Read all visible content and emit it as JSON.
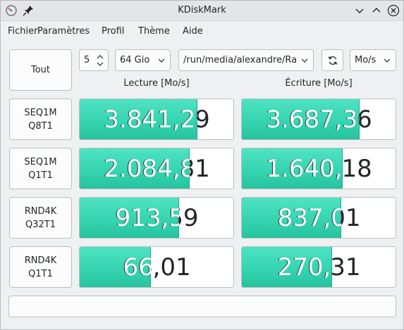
{
  "window": {
    "title": "KDiskMark"
  },
  "menu": {
    "items": [
      "Fichier",
      "Paramètres",
      "Profil",
      "Thème",
      "Aide"
    ]
  },
  "toolbar": {
    "all_label": "Tout",
    "runs_value": "5",
    "size_value": "64 Gio",
    "path_value": "/run/media/alexandre/Raid",
    "unit_value": "Mo/s"
  },
  "columns": {
    "read": "Lecture [Mo/s]",
    "write": "Écriture [Mo/s]"
  },
  "tests": [
    {
      "line1": "SEQ1M",
      "line2": "Q8T1",
      "read": "3.841,29",
      "write": "3.687,36",
      "read_fill": 0.76,
      "write_fill": 0.76
    },
    {
      "line1": "SEQ1M",
      "line2": "Q1T1",
      "read": "2.084,81",
      "write": "1.640,18",
      "read_fill": 0.71,
      "write_fill": 0.65
    },
    {
      "line1": "RND4K",
      "line2": "Q32T1",
      "read": "913,59",
      "write": "837,01",
      "read_fill": 0.64,
      "write_fill": 0.64
    },
    {
      "line1": "RND4K",
      "line2": "Q1T1",
      "read": "66,01",
      "write": "270,31",
      "read_fill": 0.46,
      "write_fill": 0.58
    }
  ],
  "colors": {
    "bar": "#36d4b0",
    "bar_edge": "#1fa98a"
  },
  "icons": {
    "app": "disk-icon",
    "pin": "pin-icon",
    "refresh": "refresh-icon"
  }
}
